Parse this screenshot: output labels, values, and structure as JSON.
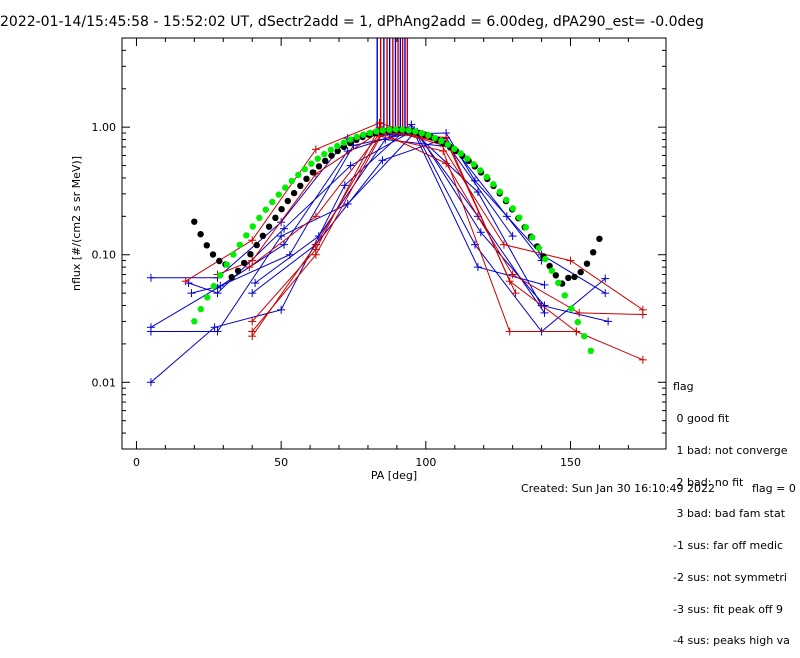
{
  "title": "2022-01-14/15:45:58 - 15:52:02 UT, dSectr2add = 1, dPhAng2add = 6.00deg, dPA290_est=  -0.0deg",
  "created": "Created: Sun Jan 30 16:10:49 2022",
  "flag_value": "flag = 0",
  "legend": {
    "title": "flag",
    "items": [
      " 0 good fit",
      " 1 bad: not converge",
      " 2 bad: no fit",
      " 3 bad: bad fam stat",
      "-1 sus: far off medic",
      "-2 sus: not symmetri",
      "-3 sus: fit peak off 9",
      "-4 sus: peaks high va"
    ]
  },
  "chart_data": {
    "type": "line",
    "xlabel": "PA [deg]",
    "ylabel": "nflux [#/(cm2 s sr MeV)]",
    "xlim": [
      -5,
      183
    ],
    "ylim": [
      0.003,
      5
    ],
    "y_scale": "log",
    "x_ticks": [
      0,
      50,
      100,
      150
    ],
    "y_ticks": [
      0.01,
      0.1,
      1.0
    ],
    "y_tick_labels": [
      "0.01",
      "0.10",
      "1.00"
    ],
    "colors": {
      "blue": "#0000cc",
      "red": "#cc0000",
      "green": "#00ee00",
      "black": "#000000"
    },
    "vertical_lines": [
      {
        "x": 83.2,
        "color": "#0000cc"
      },
      {
        "x": 84.4,
        "color": "#cc0000"
      },
      {
        "x": 85.5,
        "color": "#0000cc"
      },
      {
        "x": 86.6,
        "color": "#cc0000"
      },
      {
        "x": 87.5,
        "color": "#0000cc"
      },
      {
        "x": 88.6,
        "color": "#cc0000"
      },
      {
        "x": 89.5,
        "color": "#0000cc"
      },
      {
        "x": 90.4,
        "color": "#cc0000"
      },
      {
        "x": 91.2,
        "color": "#0000cc"
      },
      {
        "x": 92.0,
        "color": "#cc0000"
      },
      {
        "x": 92.8,
        "color": "#0000cc"
      },
      {
        "x": 93.6,
        "color": "#cc0000"
      }
    ],
    "series": [
      {
        "color": "#0000cc",
        "x": [
          5,
          28,
          50,
          73,
          88,
          107,
          117,
          140,
          162
        ],
        "y": [
          0.066,
          0.066,
          0.18,
          0.82,
          0.88,
          0.9,
          0.38,
          0.1,
          0.05
        ]
      },
      {
        "color": "#0000cc",
        "x": [
          5,
          28,
          51,
          73,
          95,
          118,
          140,
          163
        ],
        "y": [
          0.027,
          0.055,
          0.12,
          0.65,
          0.95,
          0.31,
          0.04,
          0.03
        ]
      },
      {
        "color": "#0000cc",
        "x": [
          5,
          27,
          50,
          72,
          95,
          117,
          140,
          162
        ],
        "y": [
          0.01,
          0.027,
          0.037,
          0.35,
          1.05,
          0.12,
          0.025,
          0.065
        ]
      },
      {
        "color": "#0000cc",
        "x": [
          5,
          28,
          50,
          73,
          96,
          118,
          141
        ],
        "y": [
          0.025,
          0.025,
          0.14,
          0.25,
          0.9,
          0.08,
          0.058
        ]
      },
      {
        "color": "#0000cc",
        "x": [
          18,
          28,
          51,
          74,
          96,
          118,
          141
        ],
        "y": [
          0.06,
          0.05,
          0.16,
          0.5,
          0.95,
          0.2,
          0.035
        ]
      },
      {
        "color": "#0000cc",
        "x": [
          19,
          29,
          53,
          75,
          97,
          119,
          141
        ],
        "y": [
          0.05,
          0.057,
          0.1,
          0.72,
          0.92,
          0.15,
          0.04
        ]
      },
      {
        "color": "#0000cc",
        "x": [
          40,
          62,
          85,
          107,
          128,
          140
        ],
        "y": [
          0.05,
          0.12,
          0.55,
          0.82,
          0.2,
          0.09
        ]
      },
      {
        "color": "#0000cc",
        "x": [
          41,
          63,
          86,
          108,
          130
        ],
        "y": [
          0.06,
          0.14,
          0.8,
          0.7,
          0.14
        ]
      },
      {
        "color": "#cc0000",
        "x": [
          17,
          40,
          62,
          84,
          105,
          127,
          150,
          175
        ],
        "y": [
          0.062,
          0.13,
          0.67,
          1.08,
          0.75,
          0.12,
          0.09,
          0.037
        ]
      },
      {
        "color": "#cc0000",
        "x": [
          28,
          40,
          62,
          84,
          107,
          130,
          153,
          175
        ],
        "y": [
          0.07,
          0.09,
          0.43,
          0.92,
          0.52,
          0.07,
          0.035,
          0.034
        ]
      },
      {
        "color": "#cc0000",
        "x": [
          40,
          62,
          84,
          106,
          129,
          152,
          175
        ],
        "y": [
          0.023,
          0.12,
          0.85,
          0.65,
          0.025,
          0.025,
          0.015
        ]
      },
      {
        "color": "#cc0000",
        "x": [
          40,
          62,
          85,
          107,
          129,
          152
        ],
        "y": [
          0.025,
          0.1,
          0.9,
          0.83,
          0.062,
          0.025
        ]
      },
      {
        "color": "#cc0000",
        "x": [
          40,
          62,
          84,
          108,
          131
        ],
        "y": [
          0.03,
          0.11,
          1.0,
          0.7,
          0.05
        ]
      },
      {
        "color": "#cc0000",
        "x": [
          39,
          62,
          85,
          107
        ],
        "y": [
          0.08,
          0.2,
          0.95,
          0.75
        ]
      }
    ],
    "fit_green": {
      "x_start": 20,
      "x_end": 157,
      "peak_x": 90,
      "peak_y": 0.96,
      "sigma_left": 26.6,
      "sigma_right": 23.7,
      "n": 62
    },
    "fit_black": {
      "x_start": 20,
      "x_end": 160,
      "peak_x": 90,
      "peak_y": 0.95,
      "sigma": 23.5,
      "bg_left_y": 0.038,
      "bg_left_x": 32,
      "bg_right_y": 0.022,
      "bg_right_x": 148,
      "n": 66
    }
  }
}
